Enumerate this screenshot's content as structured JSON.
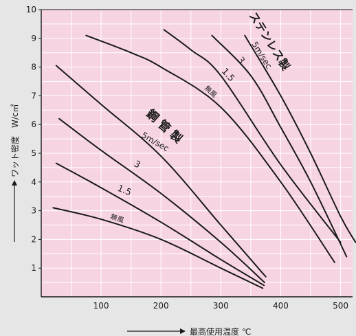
{
  "chart_data": {
    "type": "line",
    "xlabel": "最高使用温度 ℃",
    "ylabel": "ワット密度　W/c㎡",
    "xlim": [
      0,
      520
    ],
    "ylim": [
      0,
      10
    ],
    "xticks": [
      "100",
      "200",
      "300",
      "400",
      "500"
    ],
    "yticks": [
      "1",
      "2",
      "3",
      "4",
      "5",
      "6",
      "7",
      "8",
      "9",
      "10"
    ],
    "grid": true,
    "colors": {
      "plot_bg": "#f7d4e2",
      "grid": "#ffffff",
      "line": "#1a1a1a",
      "page_bg": "#e6e6e6"
    },
    "groups": [
      {
        "label": "鋼 管 製",
        "speed_label": "5m/sec"
      },
      {
        "label": "ステンレス製",
        "speed_label": "5m/sec"
      }
    ],
    "series": [
      {
        "name": "無風",
        "group": "鋼 管 製",
        "x": [
          20,
          100,
          200,
          300,
          370
        ],
        "y": [
          3.1,
          2.7,
          2.0,
          1.0,
          0.3
        ]
      },
      {
        "name": "1.5",
        "group": "鋼 管 製",
        "x": [
          25,
          100,
          200,
          300,
          372
        ],
        "y": [
          4.65,
          3.8,
          2.6,
          1.3,
          0.4
        ]
      },
      {
        "name": "3",
        "group": "鋼 管 製",
        "x": [
          30,
          100,
          200,
          300,
          373
        ],
        "y": [
          6.2,
          5.1,
          3.6,
          1.9,
          0.5
        ]
      },
      {
        "name": "5m/sec",
        "group": "鋼 管 製",
        "x": [
          25,
          100,
          200,
          300,
          375
        ],
        "y": [
          8.05,
          6.7,
          4.9,
          2.5,
          0.7
        ]
      },
      {
        "name": "無風",
        "group": "ステンレス製",
        "x": [
          75,
          150,
          200,
          300,
          400,
          490
        ],
        "y": [
          9.1,
          8.5,
          8.0,
          6.6,
          4.0,
          1.2
        ]
      },
      {
        "name": "1.5",
        "group": "ステンレス製",
        "x": [
          205,
          250,
          300,
          400,
          500
        ],
        "y": [
          9.3,
          8.6,
          7.7,
          4.6,
          1.9
        ]
      },
      {
        "name": "3",
        "group": "ステンレス製",
        "x": [
          285,
          350,
          400,
          450,
          510
        ],
        "y": [
          9.1,
          7.7,
          5.9,
          4.0,
          1.4
        ]
      },
      {
        "name": "5m/sec",
        "group": "ステンレス製",
        "x": [
          340,
          400,
          450,
          500,
          525
        ],
        "y": [
          9.1,
          7.0,
          5.0,
          2.8,
          1.9
        ]
      }
    ],
    "annotations": [
      "無風",
      "1.5",
      "3",
      "5m/sec",
      "無風",
      "1.5",
      "3",
      "5m/sec",
      "鋼 管 製",
      "ステンレス製"
    ]
  }
}
